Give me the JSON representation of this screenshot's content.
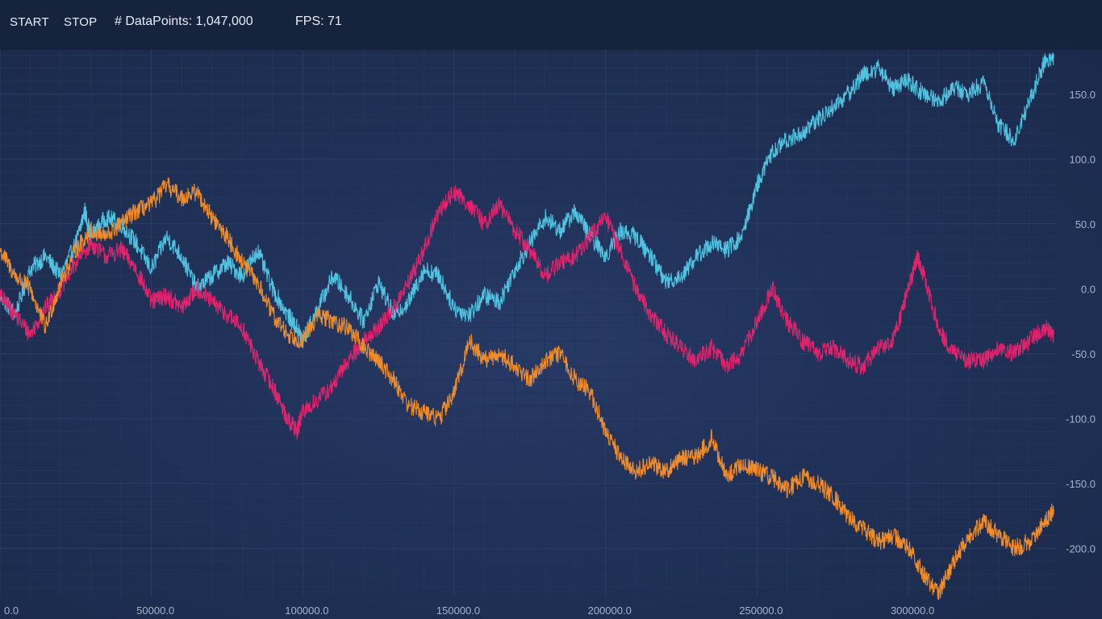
{
  "toolbar": {
    "start_label": "START",
    "stop_label": "STOP",
    "datapoints_text": "# DataPoints: 1,047,000",
    "fps_text": "FPS: 71"
  },
  "colors": {
    "background": "#1c2a4a",
    "toolbar": "#16233d",
    "grid": "#2b3d63",
    "tick": "#a6b3cd"
  },
  "chart_data": {
    "type": "line",
    "title": "",
    "xlabel": "",
    "ylabel": "",
    "xlim": [
      0,
      349000
    ],
    "ylim": [
      -237,
      184
    ],
    "x_ticks": [
      0,
      50000,
      100000,
      150000,
      200000,
      250000,
      300000
    ],
    "x_tick_labels": [
      "0.0",
      "50000.0",
      "100000.0",
      "150000.0",
      "200000.0",
      "250000.0",
      "300000.0"
    ],
    "y_ticks": [
      150,
      100,
      50,
      0,
      -50,
      -100,
      -150,
      -200
    ],
    "y_tick_labels": [
      "150.0",
      "100.0",
      "50.0",
      "0.0",
      "-50.0",
      "-100.0",
      "-150.0",
      "-200.0"
    ],
    "grid": true,
    "legend": "none",
    "series": [
      {
        "color": "#4fc3e0",
        "x": [
          0,
          5000,
          10000,
          15000,
          20000,
          25000,
          28000,
          30000,
          35000,
          40000,
          45000,
          50000,
          55000,
          60000,
          65000,
          70000,
          75000,
          80000,
          85000,
          90000,
          95000,
          98000,
          100000,
          105000,
          110000,
          115000,
          120000,
          125000,
          130000,
          135000,
          140000,
          145000,
          150000,
          155000,
          160000,
          165000,
          170000,
          175000,
          180000,
          185000,
          190000,
          195000,
          200000,
          205000,
          210000,
          215000,
          220000,
          225000,
          230000,
          235000,
          240000,
          245000,
          250000,
          255000,
          260000,
          265000,
          270000,
          275000,
          280000,
          285000,
          290000,
          295000,
          300000,
          305000,
          310000,
          315000,
          320000,
          325000,
          330000,
          335000,
          340000,
          345000,
          348000
        ],
        "y": [
          -5,
          -20,
          15,
          25,
          10,
          35,
          60,
          40,
          55,
          50,
          35,
          15,
          40,
          25,
          0,
          10,
          20,
          10,
          30,
          0,
          -20,
          -30,
          -40,
          -15,
          10,
          -5,
          -25,
          5,
          -20,
          -10,
          15,
          10,
          -15,
          -20,
          -5,
          -10,
          15,
          35,
          55,
          45,
          60,
          40,
          25,
          45,
          40,
          25,
          5,
          10,
          25,
          35,
          30,
          40,
          80,
          105,
          115,
          120,
          130,
          140,
          150,
          165,
          170,
          155,
          160,
          150,
          145,
          155,
          150,
          160,
          125,
          115,
          145,
          175,
          178
        ]
      },
      {
        "color": "#e0236c",
        "x": [
          0,
          5000,
          10000,
          15000,
          20000,
          25000,
          30000,
          35000,
          40000,
          45000,
          50000,
          55000,
          60000,
          65000,
          70000,
          75000,
          80000,
          85000,
          90000,
          95000,
          98000,
          100000,
          105000,
          110000,
          115000,
          120000,
          125000,
          130000,
          135000,
          140000,
          145000,
          150000,
          155000,
          160000,
          165000,
          170000,
          175000,
          180000,
          185000,
          190000,
          195000,
          200000,
          205000,
          210000,
          215000,
          220000,
          225000,
          230000,
          235000,
          240000,
          245000,
          250000,
          255000,
          260000,
          265000,
          270000,
          275000,
          280000,
          285000,
          290000,
          295000,
          300000,
          303000,
          305000,
          310000,
          315000,
          320000,
          325000,
          330000,
          335000,
          340000,
          345000,
          348000
        ],
        "y": [
          -5,
          -20,
          -35,
          -15,
          0,
          20,
          35,
          25,
          30,
          15,
          -10,
          -5,
          -15,
          0,
          -10,
          -20,
          -30,
          -55,
          -75,
          -100,
          -110,
          -95,
          -85,
          -75,
          -55,
          -40,
          -30,
          -15,
          5,
          30,
          60,
          75,
          65,
          50,
          65,
          45,
          30,
          10,
          20,
          25,
          40,
          55,
          30,
          0,
          -20,
          -35,
          -45,
          -55,
          -45,
          -60,
          -50,
          -25,
          0,
          -25,
          -40,
          -50,
          -45,
          -55,
          -60,
          -45,
          -40,
          0,
          25,
          10,
          -30,
          -50,
          -55,
          -55,
          -45,
          -50,
          -40,
          -30,
          -35
        ]
      },
      {
        "color": "#f28c28",
        "x": [
          0,
          5000,
          10000,
          15000,
          20000,
          25000,
          30000,
          35000,
          40000,
          45000,
          50000,
          55000,
          60000,
          65000,
          70000,
          75000,
          80000,
          85000,
          90000,
          95000,
          100000,
          105000,
          110000,
          115000,
          120000,
          125000,
          130000,
          135000,
          140000,
          145000,
          150000,
          155000,
          160000,
          165000,
          170000,
          175000,
          180000,
          185000,
          190000,
          195000,
          200000,
          205000,
          210000,
          215000,
          220000,
          225000,
          230000,
          235000,
          240000,
          245000,
          250000,
          255000,
          260000,
          265000,
          270000,
          275000,
          280000,
          285000,
          290000,
          295000,
          300000,
          305000,
          310000,
          315000,
          320000,
          325000,
          330000,
          335000,
          340000,
          345000,
          348000
        ],
        "y": [
          30,
          10,
          0,
          -30,
          5,
          30,
          45,
          40,
          50,
          60,
          65,
          80,
          70,
          75,
          55,
          40,
          20,
          5,
          -20,
          -35,
          -40,
          -20,
          -25,
          -30,
          -45,
          -55,
          -70,
          -90,
          -95,
          -100,
          -80,
          -40,
          -55,
          -50,
          -60,
          -70,
          -55,
          -50,
          -70,
          -80,
          -110,
          -130,
          -140,
          -135,
          -140,
          -130,
          -130,
          -115,
          -145,
          -135,
          -140,
          -145,
          -155,
          -145,
          -150,
          -160,
          -175,
          -185,
          -195,
          -190,
          -200,
          -220,
          -235,
          -210,
          -190,
          -180,
          -190,
          -200,
          -195,
          -180,
          -170
        ]
      }
    ]
  }
}
